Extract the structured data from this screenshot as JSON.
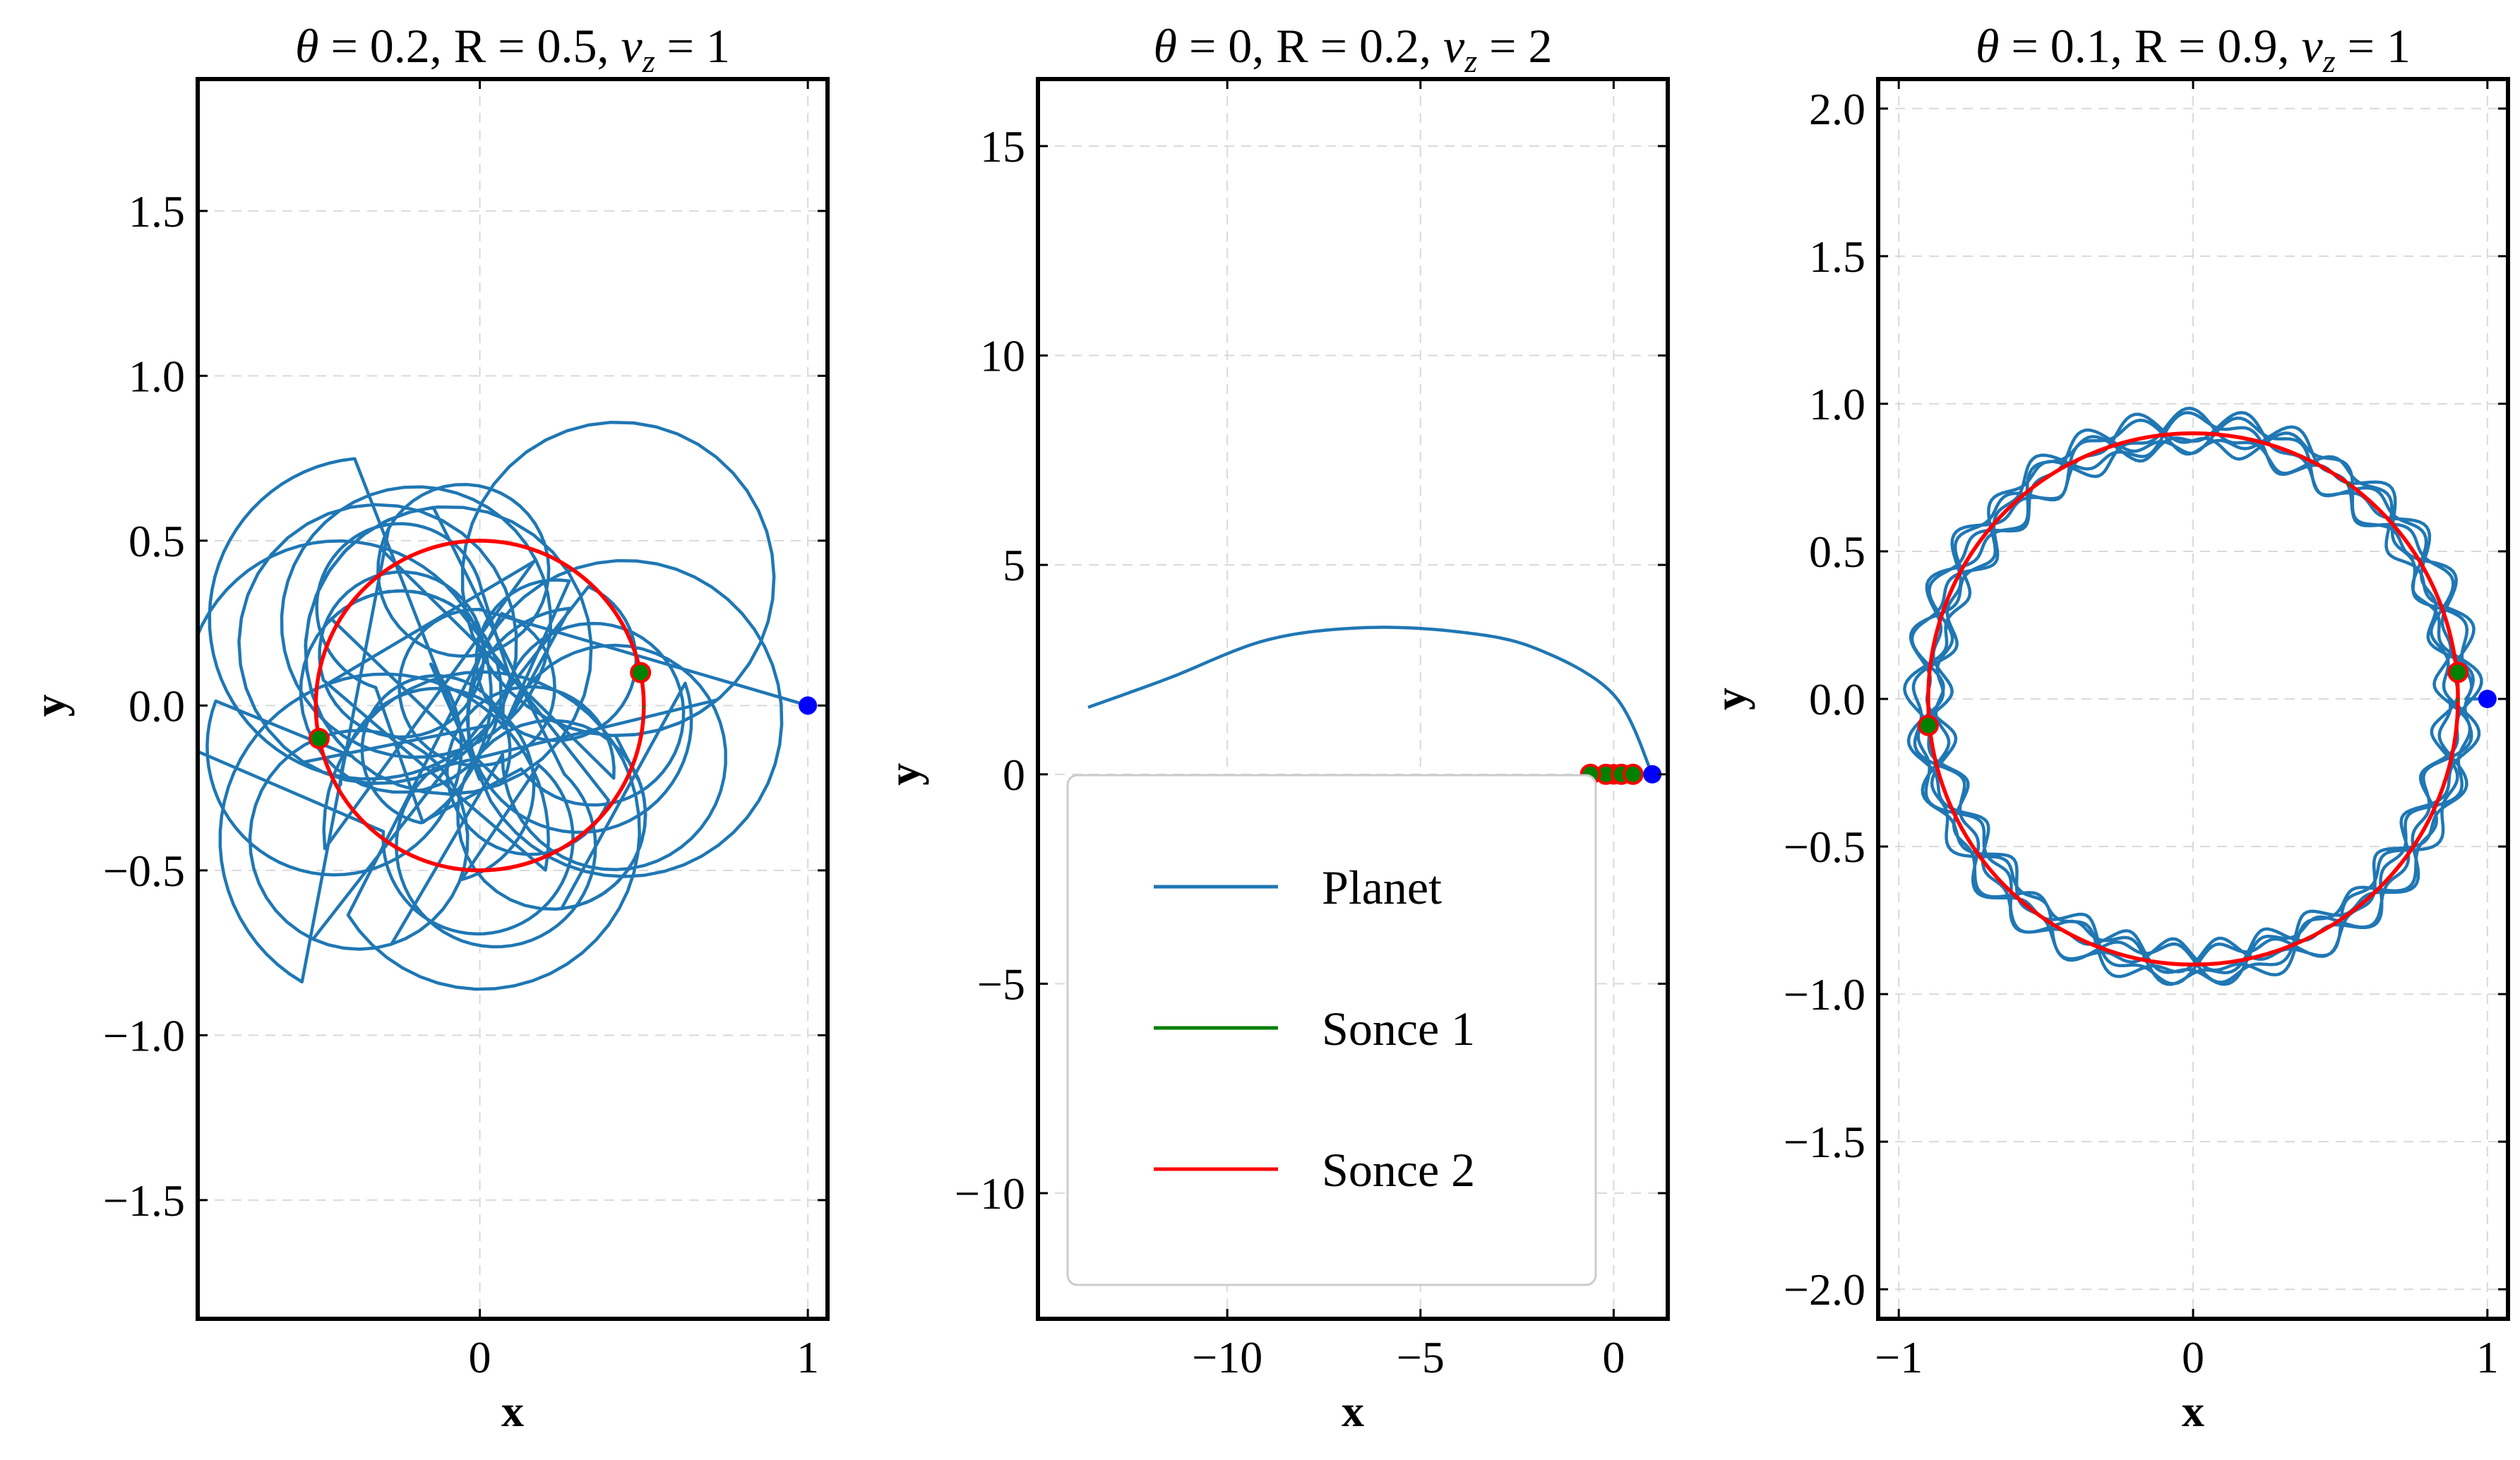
{
  "chart_data": [
    {
      "type": "line",
      "title": {
        "theta": "θ",
        "rest": " = 0.2, R = 0.5, ",
        "v": "v",
        "sub": "z",
        "end": " = 1"
      },
      "xlabel": "x",
      "ylabel": "y",
      "xlim": [
        -0.86,
        1.06
      ],
      "ylim": [
        -1.86,
        1.9
      ],
      "xticks": [
        {
          "v": 0,
          "label": "0"
        },
        {
          "v": 1,
          "label": "1"
        }
      ],
      "yticks": [
        {
          "v": -1.5,
          "label": "−1.5"
        },
        {
          "v": -1.0,
          "label": "−1.0"
        },
        {
          "v": -0.5,
          "label": "−0.5"
        },
        {
          "v": 0.0,
          "label": "0.0"
        },
        {
          "v": 0.5,
          "label": "0.5"
        },
        {
          "v": 1.0,
          "label": "1.0"
        },
        {
          "v": 1.5,
          "label": "1.5"
        }
      ],
      "grid": true,
      "planet": {
        "kind": "chaotic",
        "start": [
          1.0,
          0.0
        ]
      },
      "sun2_radius": 0.5,
      "sun_points": [
        [
          -0.49,
          -0.1
        ],
        [
          0.49,
          0.1
        ]
      ],
      "planet_point": [
        1.0,
        0.0
      ]
    },
    {
      "type": "line",
      "title": {
        "theta": "θ",
        "rest": " = 0, R = 0.2, ",
        "v": "v",
        "sub": "z",
        "end": " = 2"
      },
      "xlabel": "x",
      "ylabel": "y",
      "xlim": [
        -14.9,
        1.4
      ],
      "ylim": [
        -13.0,
        16.6
      ],
      "xticks": [
        {
          "v": -10,
          "label": "−10"
        },
        {
          "v": -5,
          "label": "−5"
        },
        {
          "v": 0,
          "label": "0"
        }
      ],
      "yticks": [
        {
          "v": -10,
          "label": "−10"
        },
        {
          "v": -5,
          "label": "−5"
        },
        {
          "v": 0,
          "label": "0"
        },
        {
          "v": 5,
          "label": "5"
        },
        {
          "v": 10,
          "label": "10"
        },
        {
          "v": 15,
          "label": "15"
        }
      ],
      "grid": true,
      "planet": {
        "kind": "arc",
        "points": [
          [
            1.0,
            0.0
          ],
          [
            0.0,
            1.9
          ],
          [
            -2.0,
            3.0
          ],
          [
            -4.0,
            3.4
          ],
          [
            -6.5,
            3.5
          ],
          [
            -9.0,
            3.2
          ],
          [
            -11.5,
            2.3
          ],
          [
            -13.6,
            1.6
          ]
        ]
      },
      "sun2_radius": 0.2,
      "sun_points": [
        [
          -0.2,
          0.0
        ],
        [
          0.2,
          0.0
        ]
      ],
      "planet_point": [
        1.0,
        0.0
      ],
      "legend": {
        "placement": "lower-left",
        "entries": [
          {
            "label": "Planet",
            "color": "#1f77b4"
          },
          {
            "label": "Sonce 1",
            "color": "#008000"
          },
          {
            "label": "Sonce 2",
            "color": "#ff0000"
          }
        ]
      }
    },
    {
      "type": "line",
      "title": {
        "theta": "θ",
        "rest": " = 0.1, R = 0.9, ",
        "v": "v",
        "sub": "z",
        "end": " = 1"
      },
      "xlabel": "x",
      "ylabel": "y",
      "xlim": [
        -1.07,
        1.07
      ],
      "ylim": [
        -2.1,
        2.1
      ],
      "xticks": [
        {
          "v": -1,
          "label": "−1"
        },
        {
          "v": 0,
          "label": "0"
        },
        {
          "v": 1,
          "label": "1"
        }
      ],
      "yticks": [
        {
          "v": -2.0,
          "label": "−2.0"
        },
        {
          "v": -1.5,
          "label": "−1.5"
        },
        {
          "v": -1.0,
          "label": "−1.0"
        },
        {
          "v": -0.5,
          "label": "−0.5"
        },
        {
          "v": 0.0,
          "label": "0.0"
        },
        {
          "v": 0.5,
          "label": "0.5"
        },
        {
          "v": 1.0,
          "label": "1.0"
        },
        {
          "v": 1.5,
          "label": "1.5"
        },
        {
          "v": 2.0,
          "label": "2.0"
        }
      ],
      "grid": true,
      "planet": {
        "kind": "ring",
        "start": [
          1.0,
          0.0
        ]
      },
      "sun2_radius": 0.9,
      "sun_points": [
        [
          -0.9,
          -0.09
        ],
        [
          0.9,
          0.09
        ]
      ],
      "planet_point": [
        1.0,
        0.0
      ]
    }
  ],
  "colors": {
    "planet": "#1f77b4",
    "sun1": "#008000",
    "sun2": "#ff0000",
    "planet_marker": "#0000ff"
  }
}
